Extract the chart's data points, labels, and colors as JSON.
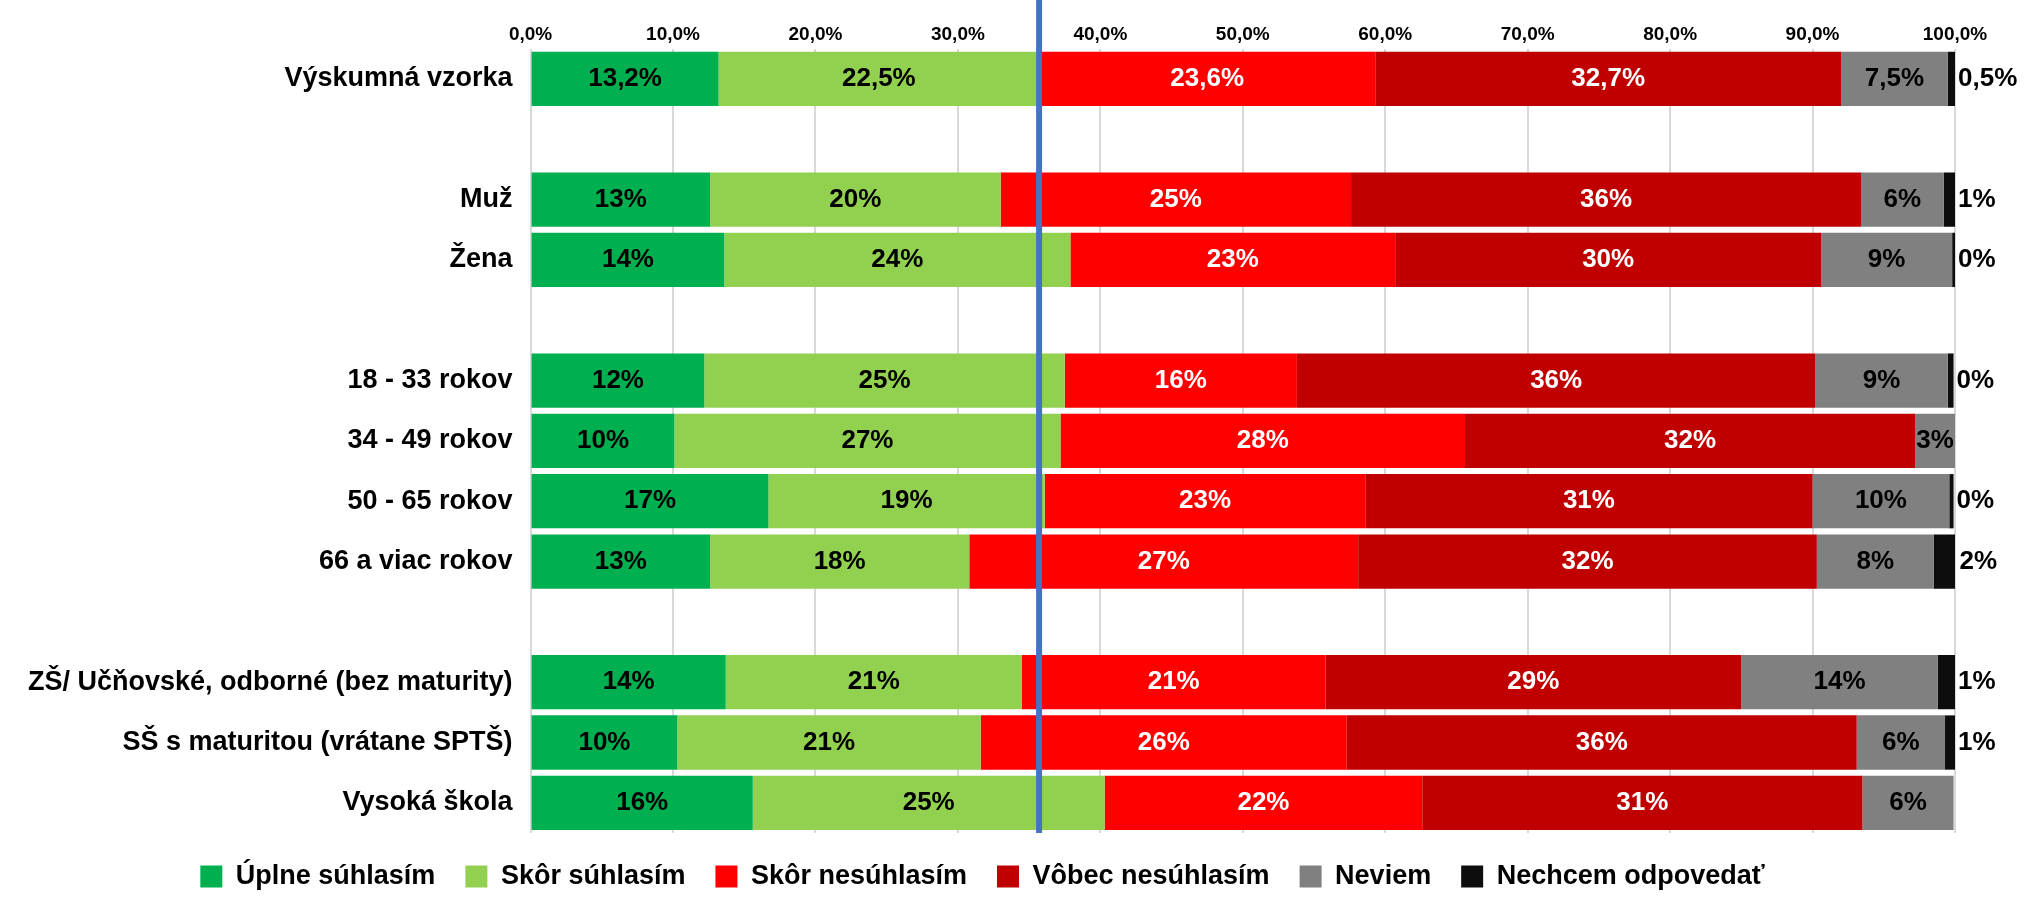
{
  "chart_data": {
    "type": "bar",
    "orientation": "horizontal",
    "stacked": true,
    "categories": [
      "Výskumná vzorka",
      null,
      "Muž",
      "Žena",
      null,
      "18 - 33 rokov",
      "34 - 49 rokov",
      "50 - 65 rokov",
      "66 a viac rokov",
      null,
      "ZŠ/ Učňovské, odborné (bez maturity)",
      "SŠ s maturitou (vrátane SPTŠ)",
      "Vysoká škola"
    ],
    "series": [
      {
        "name": "Úplne súhlasím",
        "color": "#00b050",
        "values": [
          13.2,
          null,
          12.6,
          13.6,
          null,
          12.2,
          10.1,
          16.7,
          12.6,
          null,
          13.7,
          10.3,
          15.6
        ],
        "value_labels": [
          "13,2%",
          null,
          "13%",
          "14%",
          null,
          "12%",
          "10%",
          "17%",
          "13%",
          null,
          "14%",
          "10%",
          "16%"
        ]
      },
      {
        "name": "Skôr súhlasím",
        "color": "#92d050",
        "values": [
          22.5,
          null,
          20.4,
          24.3,
          null,
          25.3,
          27.1,
          19.4,
          18.2,
          null,
          20.8,
          21.3,
          24.7
        ],
        "value_labels": [
          "22,5%",
          null,
          "20%",
          "24%",
          null,
          "25%",
          "27%",
          "19%",
          "18%",
          null,
          "21%",
          "21%",
          "25%"
        ]
      },
      {
        "name": "Skôr nesúhlasím",
        "color": "#ff0000",
        "values": [
          23.6,
          null,
          24.6,
          22.8,
          null,
          16.3,
          28.4,
          22.5,
          27.3,
          null,
          21.3,
          25.7,
          22.3
        ],
        "value_labels": [
          "23,6%",
          null,
          "25%",
          "23%",
          null,
          "16%",
          "28%",
          "23%",
          "27%",
          null,
          "21%",
          "26%",
          "22%"
        ]
      },
      {
        "name": "Vôbec nesúhlasím",
        "color": "#c00000",
        "values": [
          32.7,
          null,
          35.8,
          29.9,
          null,
          36.4,
          31.6,
          31.4,
          32.2,
          null,
          29.2,
          35.8,
          30.9
        ],
        "value_labels": [
          "32,7%",
          null,
          "36%",
          "30%",
          null,
          "36%",
          "32%",
          "31%",
          "32%",
          null,
          "29%",
          "36%",
          "31%"
        ]
      },
      {
        "name": "Neviem",
        "color": "#808080",
        "values": [
          7.5,
          null,
          5.8,
          9.2,
          null,
          9.3,
          2.8,
          9.6,
          8.2,
          null,
          13.8,
          6.2,
          6.4
        ],
        "value_labels": [
          "7,5%",
          null,
          "6%",
          "9%",
          null,
          "9%",
          "3%",
          "10%",
          "8%",
          null,
          "14%",
          "6%",
          "6%"
        ]
      },
      {
        "name": "Nechcem odpovedať",
        "color": "#0d0d0d",
        "values": [
          0.5,
          null,
          0.8,
          0.2,
          null,
          0.4,
          null,
          0.3,
          1.6,
          null,
          1.2,
          0.7,
          null
        ],
        "value_labels": [
          "0,5%",
          null,
          "1%",
          "0%",
          null,
          "0%",
          null,
          "0%",
          "2%",
          null,
          "1%",
          "1%",
          null
        ]
      }
    ],
    "xlim": [
      0,
      100
    ],
    "xticks": [
      {
        "value": 0,
        "label": "0,0%"
      },
      {
        "value": 10,
        "label": "10,0%"
      },
      {
        "value": 20,
        "label": "20,0%"
      },
      {
        "value": 30,
        "label": "30,0%"
      },
      {
        "value": 40,
        "label": "40,0%"
      },
      {
        "value": 50,
        "label": "50,0%"
      },
      {
        "value": 60,
        "label": "60,0%"
      },
      {
        "value": 70,
        "label": "70,0%"
      },
      {
        "value": 80,
        "label": "80,0%"
      },
      {
        "value": 90,
        "label": "90,0%"
      },
      {
        "value": 100,
        "label": "100,0%"
      }
    ],
    "ref_lines": [
      {
        "axis": "x",
        "value": 35.7,
        "color": "#4472c4"
      }
    ],
    "grid": "x",
    "legend": "bottom"
  }
}
